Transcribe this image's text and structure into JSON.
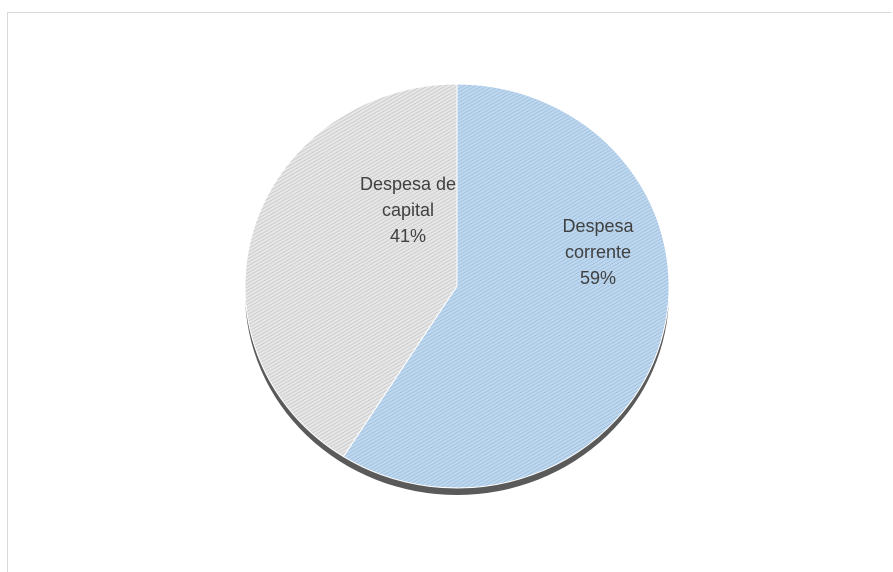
{
  "chart_data": {
    "type": "pie",
    "title": "",
    "slices": [
      {
        "name": "Despesa corrente",
        "value": 59,
        "label_lines": [
          "Despesa",
          "corrente",
          "59%"
        ],
        "color": "#bdd7ee",
        "hatch_color": "#8fb0d4"
      },
      {
        "name": "Despesa de capital",
        "value": 41,
        "label_lines": [
          "Despesa de",
          "capital",
          "41%"
        ],
        "color": "#e7e6e6",
        "hatch_color": "#b8b7b7"
      }
    ],
    "start_angle_deg": 0,
    "direction": "clockwise",
    "legend": "none",
    "style_3d": true,
    "shadow_color": "#5a5a5a"
  }
}
